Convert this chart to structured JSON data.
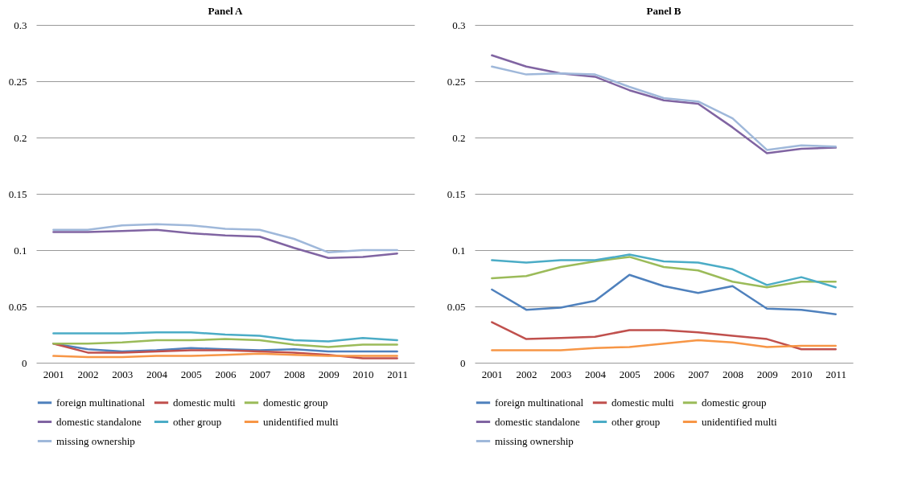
{
  "chart_data": [
    {
      "type": "line",
      "title": "Panel A",
      "categories": [
        "2001",
        "2002",
        "2003",
        "2004",
        "2005",
        "2006",
        "2007",
        "2008",
        "2009",
        "2010",
        "2011"
      ],
      "ylim": [
        0,
        0.3
      ],
      "yticks": [
        0,
        0.05,
        0.1,
        0.15,
        0.2,
        0.25,
        0.3
      ],
      "grid": "y",
      "legend": "bottom",
      "series": [
        {
          "name": "foreign multinational",
          "color": "#4f81bd",
          "values": [
            0.017,
            0.012,
            0.01,
            0.011,
            0.013,
            0.012,
            0.011,
            0.012,
            0.01,
            0.01,
            0.01
          ]
        },
        {
          "name": "domestic multi",
          "color": "#c0504d",
          "values": [
            0.017,
            0.009,
            0.009,
            0.01,
            0.011,
            0.011,
            0.01,
            0.009,
            0.007,
            0.004,
            0.004
          ]
        },
        {
          "name": "domestic group",
          "color": "#9bbb59",
          "values": [
            0.017,
            0.017,
            0.018,
            0.02,
            0.02,
            0.021,
            0.02,
            0.016,
            0.014,
            0.016,
            0.016
          ]
        },
        {
          "name": "domestic standalone",
          "color": "#8064a2",
          "values": [
            0.116,
            0.116,
            0.117,
            0.118,
            0.115,
            0.113,
            0.112,
            0.102,
            0.093,
            0.094,
            0.097
          ]
        },
        {
          "name": "other group",
          "color": "#4bacc6",
          "values": [
            0.026,
            0.026,
            0.026,
            0.027,
            0.027,
            0.025,
            0.024,
            0.02,
            0.019,
            0.022,
            0.02
          ]
        },
        {
          "name": "unidentified multi",
          "color": "#f79646",
          "values": [
            0.006,
            0.005,
            0.005,
            0.006,
            0.006,
            0.007,
            0.008,
            0.007,
            0.006,
            0.006,
            0.006
          ]
        },
        {
          "name": "missing ownership",
          "color": "#9fb8da",
          "values": [
            0.118,
            0.118,
            0.122,
            0.123,
            0.122,
            0.119,
            0.118,
            0.11,
            0.098,
            0.1,
            0.1
          ]
        }
      ]
    },
    {
      "type": "line",
      "title": "Panel B",
      "categories": [
        "2001",
        "2002",
        "2003",
        "2004",
        "2005",
        "2006",
        "2007",
        "2008",
        "2009",
        "2010",
        "2011"
      ],
      "ylim": [
        0,
        0.3
      ],
      "yticks": [
        0,
        0.05,
        0.1,
        0.15,
        0.2,
        0.25,
        0.3
      ],
      "grid": "y",
      "legend": "bottom",
      "series": [
        {
          "name": "foreign multinational",
          "color": "#4f81bd",
          "values": [
            0.065,
            0.047,
            0.049,
            0.055,
            0.078,
            0.068,
            0.062,
            0.068,
            0.048,
            0.047,
            0.043
          ]
        },
        {
          "name": "domestic multi",
          "color": "#c0504d",
          "values": [
            0.036,
            0.021,
            0.022,
            0.023,
            0.029,
            0.029,
            0.027,
            0.024,
            0.021,
            0.012,
            0.012
          ]
        },
        {
          "name": "domestic group",
          "color": "#9bbb59",
          "values": [
            0.075,
            0.077,
            0.085,
            0.09,
            0.094,
            0.085,
            0.082,
            0.072,
            0.067,
            0.072,
            0.072
          ]
        },
        {
          "name": "domestic standalone",
          "color": "#8064a2",
          "values": [
            0.273,
            0.263,
            0.257,
            0.254,
            0.242,
            0.233,
            0.23,
            0.209,
            0.186,
            0.19,
            0.191
          ]
        },
        {
          "name": "other group",
          "color": "#4bacc6",
          "values": [
            0.091,
            0.089,
            0.091,
            0.091,
            0.096,
            0.09,
            0.089,
            0.083,
            0.069,
            0.076,
            0.067
          ]
        },
        {
          "name": "unidentified multi",
          "color": "#f79646",
          "values": [
            0.011,
            0.011,
            0.011,
            0.013,
            0.014,
            0.017,
            0.02,
            0.018,
            0.014,
            0.015,
            0.015
          ]
        },
        {
          "name": "missing ownership",
          "color": "#9fb8da",
          "values": [
            0.263,
            0.256,
            0.257,
            0.256,
            0.245,
            0.235,
            0.232,
            0.217,
            0.189,
            0.193,
            0.192
          ]
        }
      ]
    }
  ]
}
